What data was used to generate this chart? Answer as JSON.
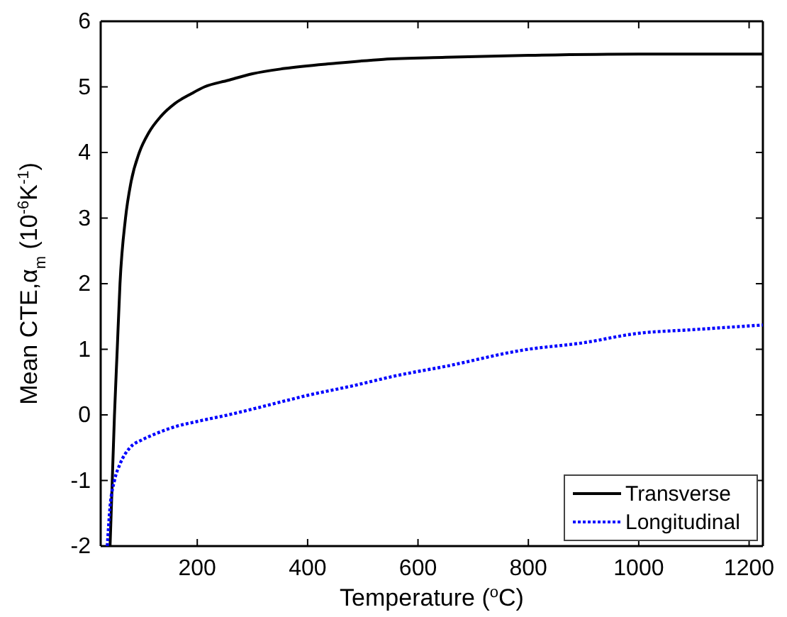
{
  "chart_data": {
    "type": "line",
    "xlabel": "Temperature ($^{o}$C)",
    "ylabel": "Mean CTE,α$_{m}$ (10$^{-6}$K$^{-1}$)",
    "xlim": [
      25,
      1225
    ],
    "ylim": [
      -2,
      6
    ],
    "xticks": [
      200,
      400,
      600,
      800,
      1000,
      1200
    ],
    "yticks": [
      -2,
      -1,
      0,
      1,
      2,
      3,
      4,
      5,
      6
    ],
    "legend": "bottom right",
    "grid": false,
    "series": [
      {
        "name": "Transverse",
        "color": "#000000",
        "line_style": "solid",
        "x": [
          42,
          46,
          50,
          55,
          60,
          70,
          80,
          95,
          112,
          134,
          160,
          190,
          213,
          256,
          300,
          358,
          450,
          537,
          650,
          800,
          1000,
          1225
        ],
        "values": [
          -2,
          -1,
          0,
          1,
          2,
          3,
          3.55,
          4,
          4.3,
          4.55,
          4.75,
          4.9,
          5,
          5.1,
          5.2,
          5.28,
          5.36,
          5.42,
          5.45,
          5.48,
          5.5,
          5.5
        ]
      },
      {
        "name": "Longitudinal",
        "color": "#0000ff",
        "line_style": "dotted",
        "x": [
          37,
          42,
          50,
          60,
          78,
          100,
          121,
          160,
          200,
          256,
          320,
          401,
          480,
          562,
          650,
          792,
          900,
          996,
          1100,
          1225
        ],
        "values": [
          -2,
          -1.4,
          -1,
          -0.75,
          -0.5,
          -0.38,
          -0.3,
          -0.18,
          -0.1,
          0,
          0.13,
          0.3,
          0.44,
          0.6,
          0.74,
          0.99,
          1.1,
          1.24,
          1.3,
          1.37
        ]
      }
    ]
  }
}
